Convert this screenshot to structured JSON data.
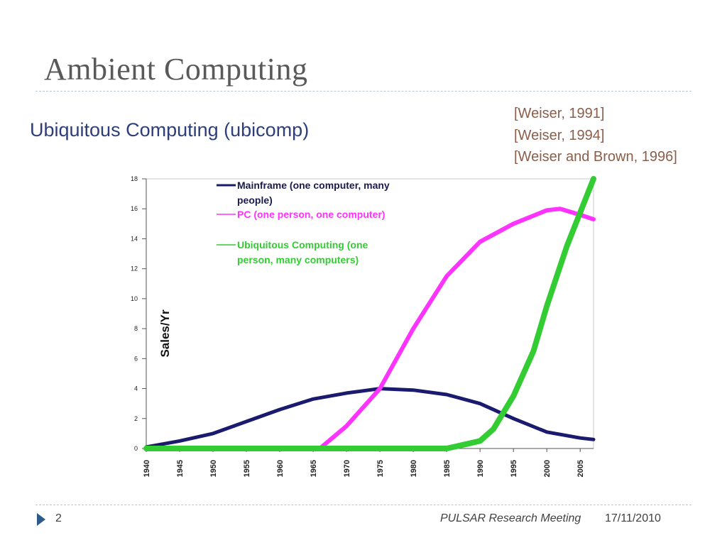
{
  "slide": {
    "title": "Ambient Computing",
    "subtitle": "Ubiquitous Computing (ubicomp)",
    "references": [
      "[Weiser, 1991]",
      "[Weiser, 1994]",
      "[Weiser and Brown, 1996]"
    ]
  },
  "footer": {
    "slide_number": "2",
    "meeting": "PULSAR Research Meeting",
    "date": "17/11/2010"
  },
  "colors": {
    "mainframe": "#1a1a6e",
    "pc": "#ff33ff",
    "ubicomp": "#33cc33"
  },
  "chart_data": {
    "type": "line",
    "title": "",
    "xlabel": "",
    "ylabel": "Sales/Yr",
    "xlim": [
      1940,
      2007
    ],
    "ylim": [
      0,
      18
    ],
    "x_ticks": [
      "1940",
      "1945",
      "1950",
      "1955",
      "1960",
      "1965",
      "1970",
      "1975",
      "1980",
      "1985",
      "1990",
      "1995",
      "2000",
      "2005"
    ],
    "y_ticks": [
      "0",
      "2",
      "4",
      "6",
      "8",
      "10",
      "12",
      "14",
      "16",
      "18"
    ],
    "grid": false,
    "legend_position": "top-left",
    "series": [
      {
        "name": "Mainframe (one computer, many people)",
        "label_lines": [
          "Mainframe (one computer, many",
          "people)"
        ],
        "color": "#1a1a6e",
        "x": [
          1940,
          1945,
          1950,
          1955,
          1960,
          1965,
          1970,
          1975,
          1980,
          1985,
          1990,
          1995,
          2000,
          2005,
          2007
        ],
        "y": [
          0.1,
          0.5,
          1.0,
          1.8,
          2.6,
          3.3,
          3.7,
          4.0,
          3.9,
          3.6,
          3.0,
          2.0,
          1.1,
          0.7,
          0.6
        ]
      },
      {
        "name": "PC (one person, one computer)",
        "label_lines": [
          "PC (one person, one computer)"
        ],
        "color": "#ff33ff",
        "x": [
          1966,
          1970,
          1975,
          1980,
          1985,
          1990,
          1995,
          2000,
          2002,
          2005,
          2007
        ],
        "y": [
          0,
          1.5,
          4.0,
          8.0,
          11.5,
          13.8,
          15.0,
          15.9,
          16.0,
          15.6,
          15.3
        ],
        "line_prefix": "—"
      },
      {
        "name": "Ubiquitous Computing (one person, many computers)",
        "label_lines": [
          "Ubiquitous Computing (one",
          "person, many computers)"
        ],
        "color": "#33cc33",
        "x": [
          1940,
          1960,
          1985,
          1988,
          1990,
          1992,
          1995,
          1998,
          2000,
          2003,
          2007
        ],
        "y": [
          0,
          0,
          0,
          0.3,
          0.5,
          1.3,
          3.5,
          6.5,
          9.5,
          13.5,
          18.0
        ]
      }
    ]
  }
}
